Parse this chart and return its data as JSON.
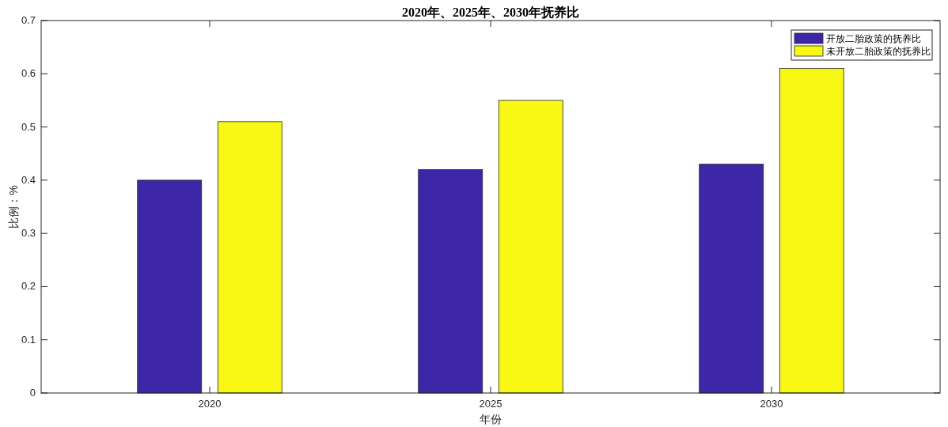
{
  "chart_data": {
    "type": "bar",
    "title": "2020年、2025年、2030年抚养比",
    "xlabel": "年份",
    "ylabel": "比例：%",
    "categories": [
      "2020",
      "2025",
      "2030"
    ],
    "series": [
      {
        "name": "开放二胎政策的抚养比",
        "color": "#3e26a8",
        "values": [
          0.4,
          0.42,
          0.43
        ]
      },
      {
        "name": "未开放二胎政策的抚养比",
        "color": "#f9f814",
        "values": [
          0.51,
          0.55,
          0.61
        ]
      }
    ],
    "ylim": [
      0,
      0.7
    ],
    "yticks": [
      0,
      0.1,
      0.2,
      0.3,
      0.4,
      0.5,
      0.6,
      0.7
    ],
    "grid": false,
    "legend": "top right"
  }
}
